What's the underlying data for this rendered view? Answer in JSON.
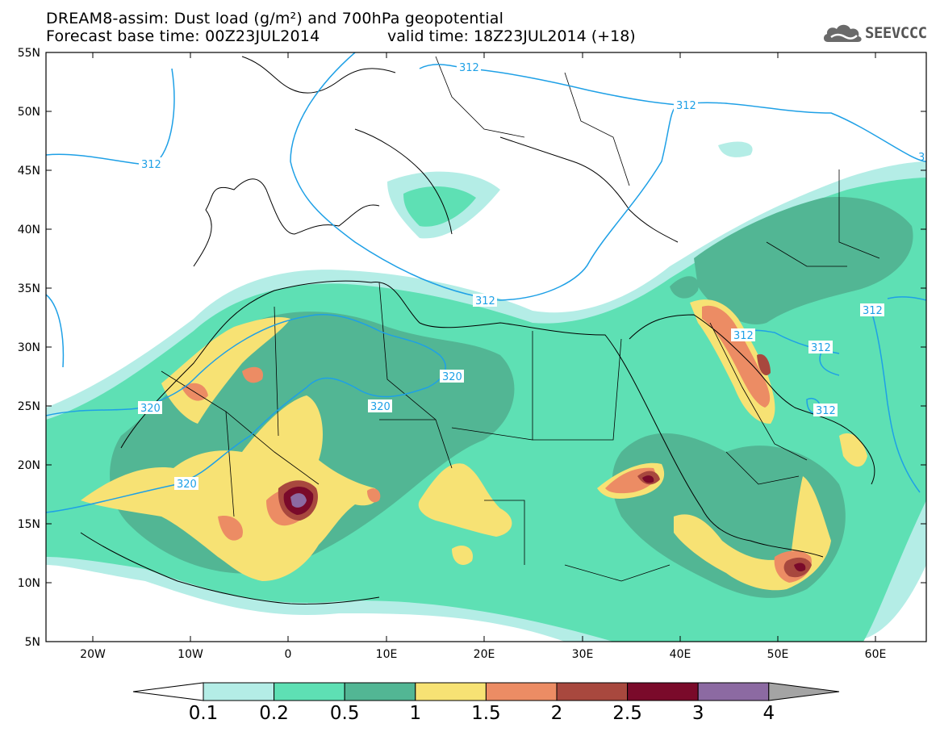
{
  "title": {
    "line1": "DREAM8-assim: Dust load (g/m²) and 700hPa geopotential",
    "line2": "Forecast base time: 00Z23JUL2014",
    "valid": "valid time: 18Z23JUL2014 (+18)"
  },
  "logo": {
    "text": "SEEVCCC",
    "icon": "cloud-icon"
  },
  "axes": {
    "lat_labels": [
      "55N",
      "50N",
      "45N",
      "40N",
      "35N",
      "30N",
      "25N",
      "20N",
      "15N",
      "10N",
      "5N"
    ],
    "lon_labels": [
      "20W",
      "10W",
      "0",
      "10E",
      "20E",
      "30E",
      "40E",
      "50E",
      "60E"
    ]
  },
  "contours": {
    "color": "#1ea0e6",
    "labels": [
      "312",
      "312",
      "312",
      "312",
      "312",
      "312",
      "312",
      "320",
      "320",
      "320",
      "320",
      "3"
    ]
  },
  "colorbar": {
    "levels": [
      "0.1",
      "0.2",
      "0.5",
      "1",
      "1.5",
      "2",
      "2.5",
      "3",
      "4"
    ],
    "colors": [
      "#b4ede6",
      "#5ee0b4",
      "#52b694",
      "#f7e274",
      "#ec8c64",
      "#a8483e",
      "#7a0a2a",
      "#8c6aa2"
    ],
    "under_color": "#ffffff",
    "over_color": "#a4a4a4"
  }
}
